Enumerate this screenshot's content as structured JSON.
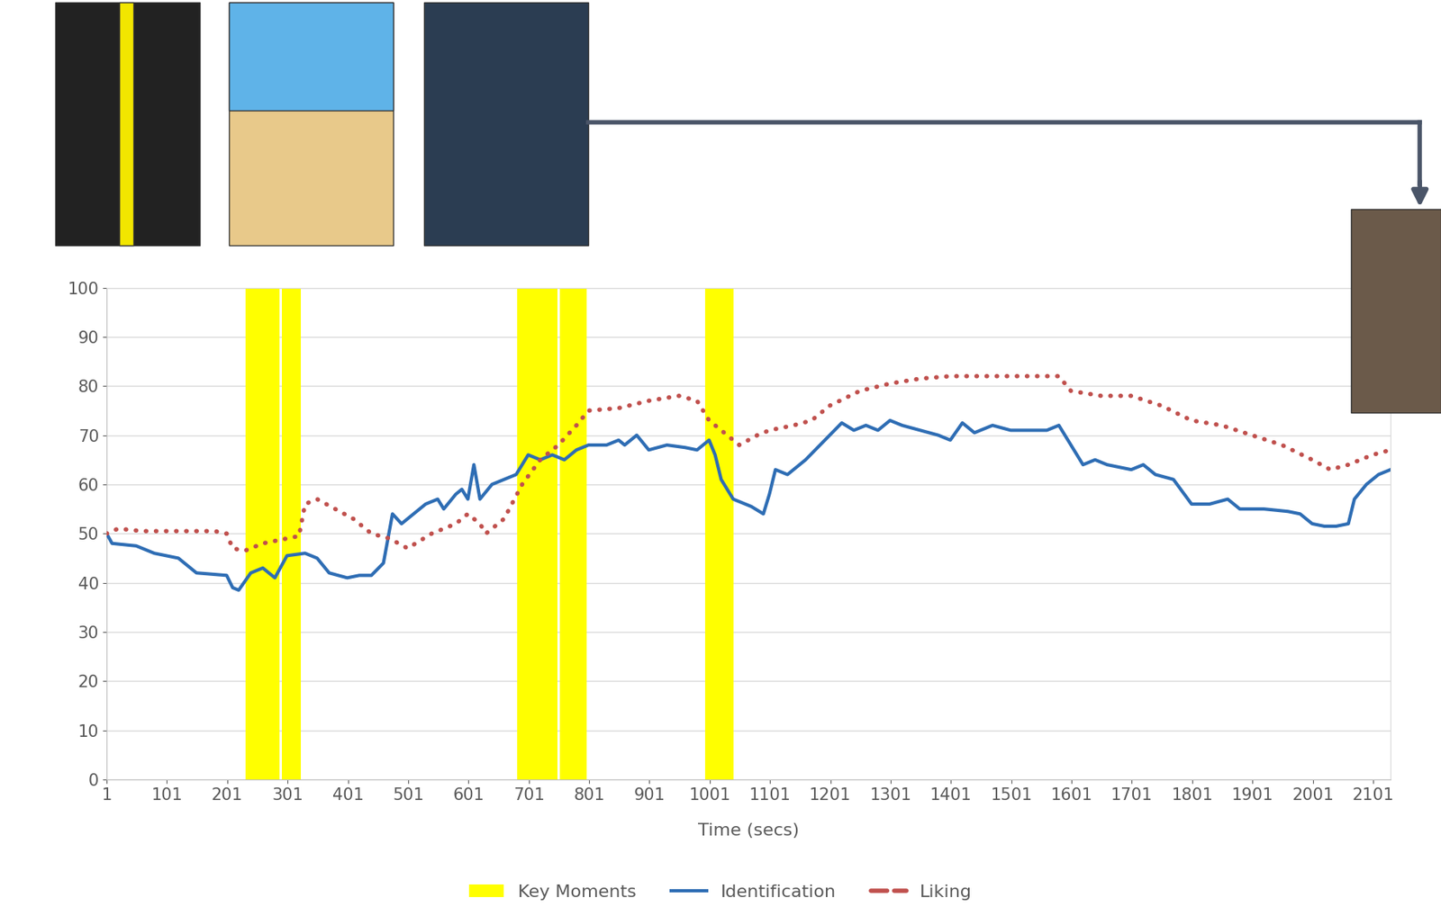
{
  "chart_data": {
    "type": "line",
    "xlabel": "Time (secs)",
    "xlim": [
      1,
      2130
    ],
    "xticks": [
      1,
      101,
      201,
      301,
      401,
      501,
      601,
      701,
      801,
      901,
      1001,
      1101,
      1201,
      1301,
      1401,
      1501,
      1601,
      1701,
      1801,
      1901,
      2001,
      2101
    ],
    "ylim": [
      0,
      100
    ],
    "yticks": [
      0,
      10,
      20,
      30,
      40,
      50,
      60,
      70,
      80,
      90,
      100
    ],
    "grid": true,
    "legend": "lower center",
    "series": [
      {
        "name": "Key Moments",
        "type": "span",
        "color": "#ffff00",
        "values": [
          [
            232,
            288
          ],
          [
            291,
            323
          ],
          [
            682,
            748
          ],
          [
            752,
            797
          ],
          [
            993,
            1041
          ]
        ]
      },
      {
        "name": "Identification",
        "type": "line",
        "color": "#2e6db4",
        "line_style": "solid",
        "x": [
          1,
          10,
          50,
          80,
          120,
          150,
          200,
          210,
          220,
          240,
          260,
          280,
          300,
          330,
          350,
          370,
          400,
          420,
          440,
          460,
          475,
          490,
          510,
          530,
          550,
          560,
          580,
          590,
          600,
          610,
          620,
          640,
          680,
          700,
          720,
          740,
          760,
          780,
          800,
          830,
          850,
          860,
          880,
          900,
          930,
          960,
          980,
          1000,
          1010,
          1020,
          1040,
          1070,
          1090,
          1100,
          1110,
          1130,
          1160,
          1200,
          1220,
          1240,
          1260,
          1280,
          1300,
          1320,
          1350,
          1380,
          1400,
          1420,
          1440,
          1470,
          1500,
          1530,
          1560,
          1580,
          1600,
          1620,
          1640,
          1660,
          1700,
          1720,
          1740,
          1770,
          1800,
          1830,
          1860,
          1880,
          1920,
          1960,
          1980,
          2000,
          2020,
          2040,
          2060,
          2070,
          2090,
          2110,
          2130
        ],
        "values": [
          50,
          48,
          47.5,
          46,
          45,
          42,
          41.5,
          39,
          38.5,
          42,
          43,
          41,
          45.5,
          46,
          45,
          42,
          41,
          41.5,
          41.5,
          44,
          54,
          52,
          54,
          56,
          57,
          55,
          58,
          59,
          57,
          64,
          57,
          60,
          62,
          66,
          65,
          66,
          65,
          67,
          68,
          68,
          69,
          68,
          70,
          67,
          68,
          67.5,
          67,
          69,
          66,
          61,
          57,
          55.5,
          54,
          58,
          63,
          62,
          65,
          70,
          72.5,
          71,
          72,
          71,
          73,
          72,
          71,
          70,
          69,
          72.5,
          70.5,
          72,
          71,
          71,
          71,
          72,
          68,
          64,
          65,
          64,
          63,
          64,
          62,
          61,
          56,
          56,
          57,
          55,
          55,
          54.5,
          54,
          52,
          51.5,
          51.5,
          52,
          57,
          60,
          62,
          63
        ]
      },
      {
        "name": "Liking",
        "type": "line",
        "color": "#c0504d",
        "line_style": "dotted",
        "x": [
          1,
          20,
          60,
          120,
          180,
          200,
          210,
          230,
          260,
          300,
          320,
          330,
          350,
          380,
          410,
          440,
          470,
          500,
          540,
          580,
          600,
          620,
          630,
          660,
          690,
          720,
          750,
          780,
          800,
          850,
          900,
          950,
          980,
          1000,
          1030,
          1050,
          1080,
          1100,
          1140,
          1170,
          1200,
          1250,
          1300,
          1350,
          1400,
          1450,
          1500,
          1550,
          1580,
          1600,
          1650,
          1700,
          1750,
          1800,
          1850,
          1900,
          1950,
          2000,
          2030,
          2060,
          2100,
          2130
        ],
        "values": [
          50,
          51,
          50.5,
          50.5,
          50.5,
          50,
          47,
          46.5,
          48,
          49,
          49.5,
          56,
          57,
          55,
          53,
          50,
          49,
          47,
          50,
          52,
          54,
          52,
          50,
          53,
          60,
          65,
          68,
          72,
          75,
          75.5,
          77,
          78,
          77,
          73,
          70,
          68,
          70,
          71,
          72,
          73,
          76,
          79,
          80.5,
          81.5,
          82,
          82,
          82,
          82,
          82,
          79,
          78,
          78,
          76,
          73,
          72,
          70,
          68,
          65,
          63,
          64,
          66,
          67
        ]
      }
    ]
  }
}
